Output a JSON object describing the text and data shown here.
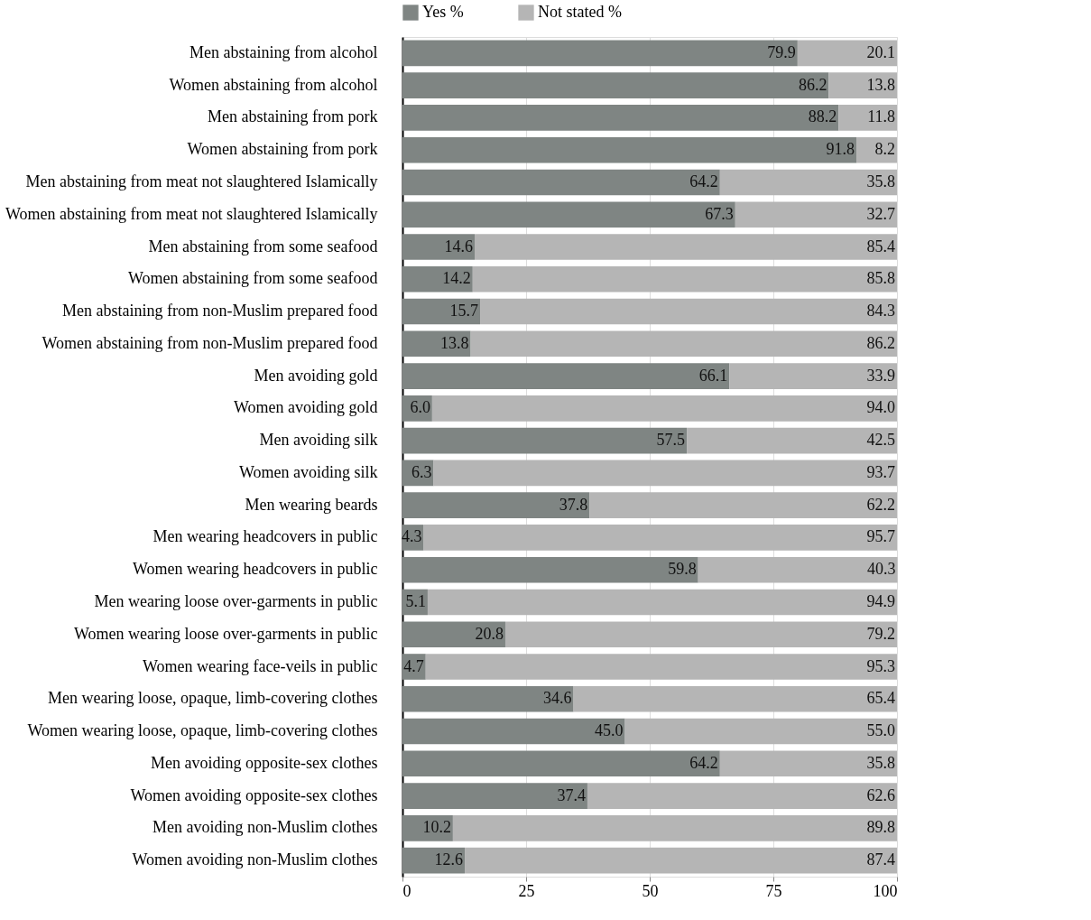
{
  "chart_data": {
    "type": "bar",
    "orientation": "horizontal",
    "stacked": true,
    "grid": "x",
    "legend": "top",
    "categories": [
      "Men abstaining from alcohol",
      "Women abstaining from alcohol",
      "Men abstaining from pork",
      "Women abstaining from pork",
      "Men abstaining from meat not slaughtered Islamically",
      "Women abstaining from meat not slaughtered Islamically",
      "Men abstaining from some seafood",
      "Women abstaining from some seafood",
      "Men abstaining from non-Muslim prepared food",
      "Women abstaining from non-Muslim prepared food",
      "Men avoiding gold",
      "Women avoiding gold",
      "Men avoiding silk",
      "Women avoiding silk",
      "Men wearing beards",
      "Men wearing headcovers in public",
      "Women wearing headcovers in public",
      "Men wearing loose over-garments in public",
      "Women wearing loose over-garments in public",
      "Women wearing face-veils in public",
      "Men wearing loose, opaque, limb-covering clothes",
      "Women wearing loose, opaque, limb-covering clothes",
      "Men avoiding opposite-sex clothes",
      "Women avoiding opposite-sex clothes",
      "Men avoiding non-Muslim clothes",
      "Women avoiding non-Muslim clothes"
    ],
    "series": [
      {
        "name": "Yes %",
        "color": "#7f8583",
        "values": [
          79.9,
          86.2,
          88.2,
          91.8,
          64.2,
          67.3,
          14.6,
          14.2,
          15.7,
          13.8,
          66.1,
          6.0,
          57.5,
          6.3,
          37.8,
          4.3,
          59.8,
          5.1,
          20.8,
          4.7,
          34.6,
          45.0,
          64.2,
          37.4,
          10.2,
          12.6
        ],
        "value_labels": [
          "79.9",
          "86.2",
          "88.2",
          "91.8",
          "64.2",
          "67.3",
          "14.6",
          "14.2",
          "15.7",
          "13.8",
          "66.1",
          "6.0",
          "57.5",
          "6.3",
          "37.8",
          "4.3",
          "59.8",
          "5.1",
          "20.8",
          "4.7",
          "34.6",
          "45.0",
          "64.2",
          "37.4",
          "10.2",
          "12.6"
        ]
      },
      {
        "name": "Not stated %",
        "color": "#b5b5b5",
        "values": [
          20.1,
          13.8,
          11.8,
          8.2,
          35.8,
          32.7,
          85.4,
          85.8,
          84.3,
          86.2,
          33.9,
          94.0,
          42.5,
          93.7,
          62.2,
          95.7,
          40.3,
          94.9,
          79.2,
          95.3,
          65.4,
          55.0,
          35.8,
          62.6,
          89.8,
          87.4
        ],
        "value_labels": [
          "20.1",
          "13.8",
          "11.8",
          "8.2",
          "35.8",
          "32.7",
          "85.4",
          "85.8",
          "84.3",
          "86.2",
          "33.9",
          "94.0",
          "42.5",
          "93.7",
          "62.2",
          "95.7",
          "40.3",
          "94.9",
          "79.2",
          "95.3",
          "65.4",
          "55.0",
          "35.8",
          "62.6",
          "89.8",
          "87.4"
        ]
      }
    ],
    "xlim": [
      0,
      100
    ],
    "xticks": [
      0,
      25,
      50,
      75,
      100
    ]
  }
}
